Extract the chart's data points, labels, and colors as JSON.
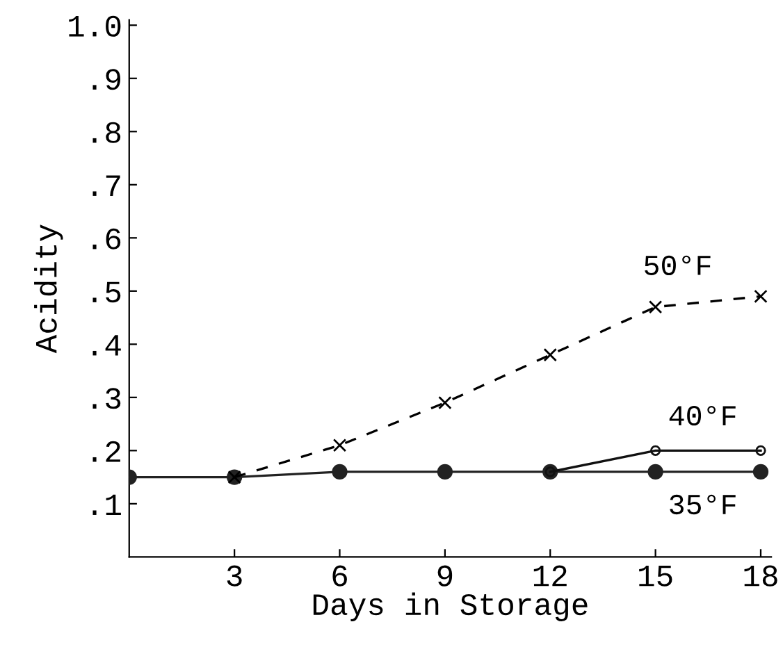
{
  "chart_data": {
    "type": "line",
    "xlabel": "Days in Storage",
    "ylabel": "Acidity",
    "xlim": [
      0,
      18.3
    ],
    "ylim": [
      0,
      1.01
    ],
    "xticks": [
      3,
      6,
      9,
      12,
      15,
      18
    ],
    "yticks": [
      {
        "value": 0.1,
        "label": ".1"
      },
      {
        "value": 0.2,
        "label": ".2"
      },
      {
        "value": 0.3,
        "label": ".3"
      },
      {
        "value": 0.4,
        "label": ".4"
      },
      {
        "value": 0.5,
        "label": ".5"
      },
      {
        "value": 0.6,
        "label": ".6"
      },
      {
        "value": 0.7,
        "label": ".7"
      },
      {
        "value": 0.8,
        "label": ".8"
      },
      {
        "value": 0.9,
        "label": ".9"
      },
      {
        "value": 1.0,
        "label": "1.0"
      }
    ],
    "grid": false,
    "legend": false,
    "series": [
      {
        "name": "50°F",
        "color": "#000000",
        "marker": "cross",
        "line_style": "dashed",
        "x": [
          3,
          6,
          9,
          12,
          15,
          18
        ],
        "values": [
          0.15,
          0.21,
          0.29,
          0.38,
          0.47,
          0.49
        ]
      },
      {
        "name": "40°F",
        "color": "#111111",
        "marker": "circle",
        "line_style": "solid",
        "x": [
          12,
          15,
          18
        ],
        "values": [
          0.16,
          0.2,
          0.2
        ]
      },
      {
        "name": "35°F",
        "color": "#222222",
        "marker": "circle",
        "line_style": "solid",
        "x": [
          0,
          3,
          6,
          9,
          12,
          15,
          18
        ],
        "values": [
          0.15,
          0.15,
          0.16,
          0.16,
          0.16,
          0.16,
          0.16
        ]
      }
    ]
  }
}
